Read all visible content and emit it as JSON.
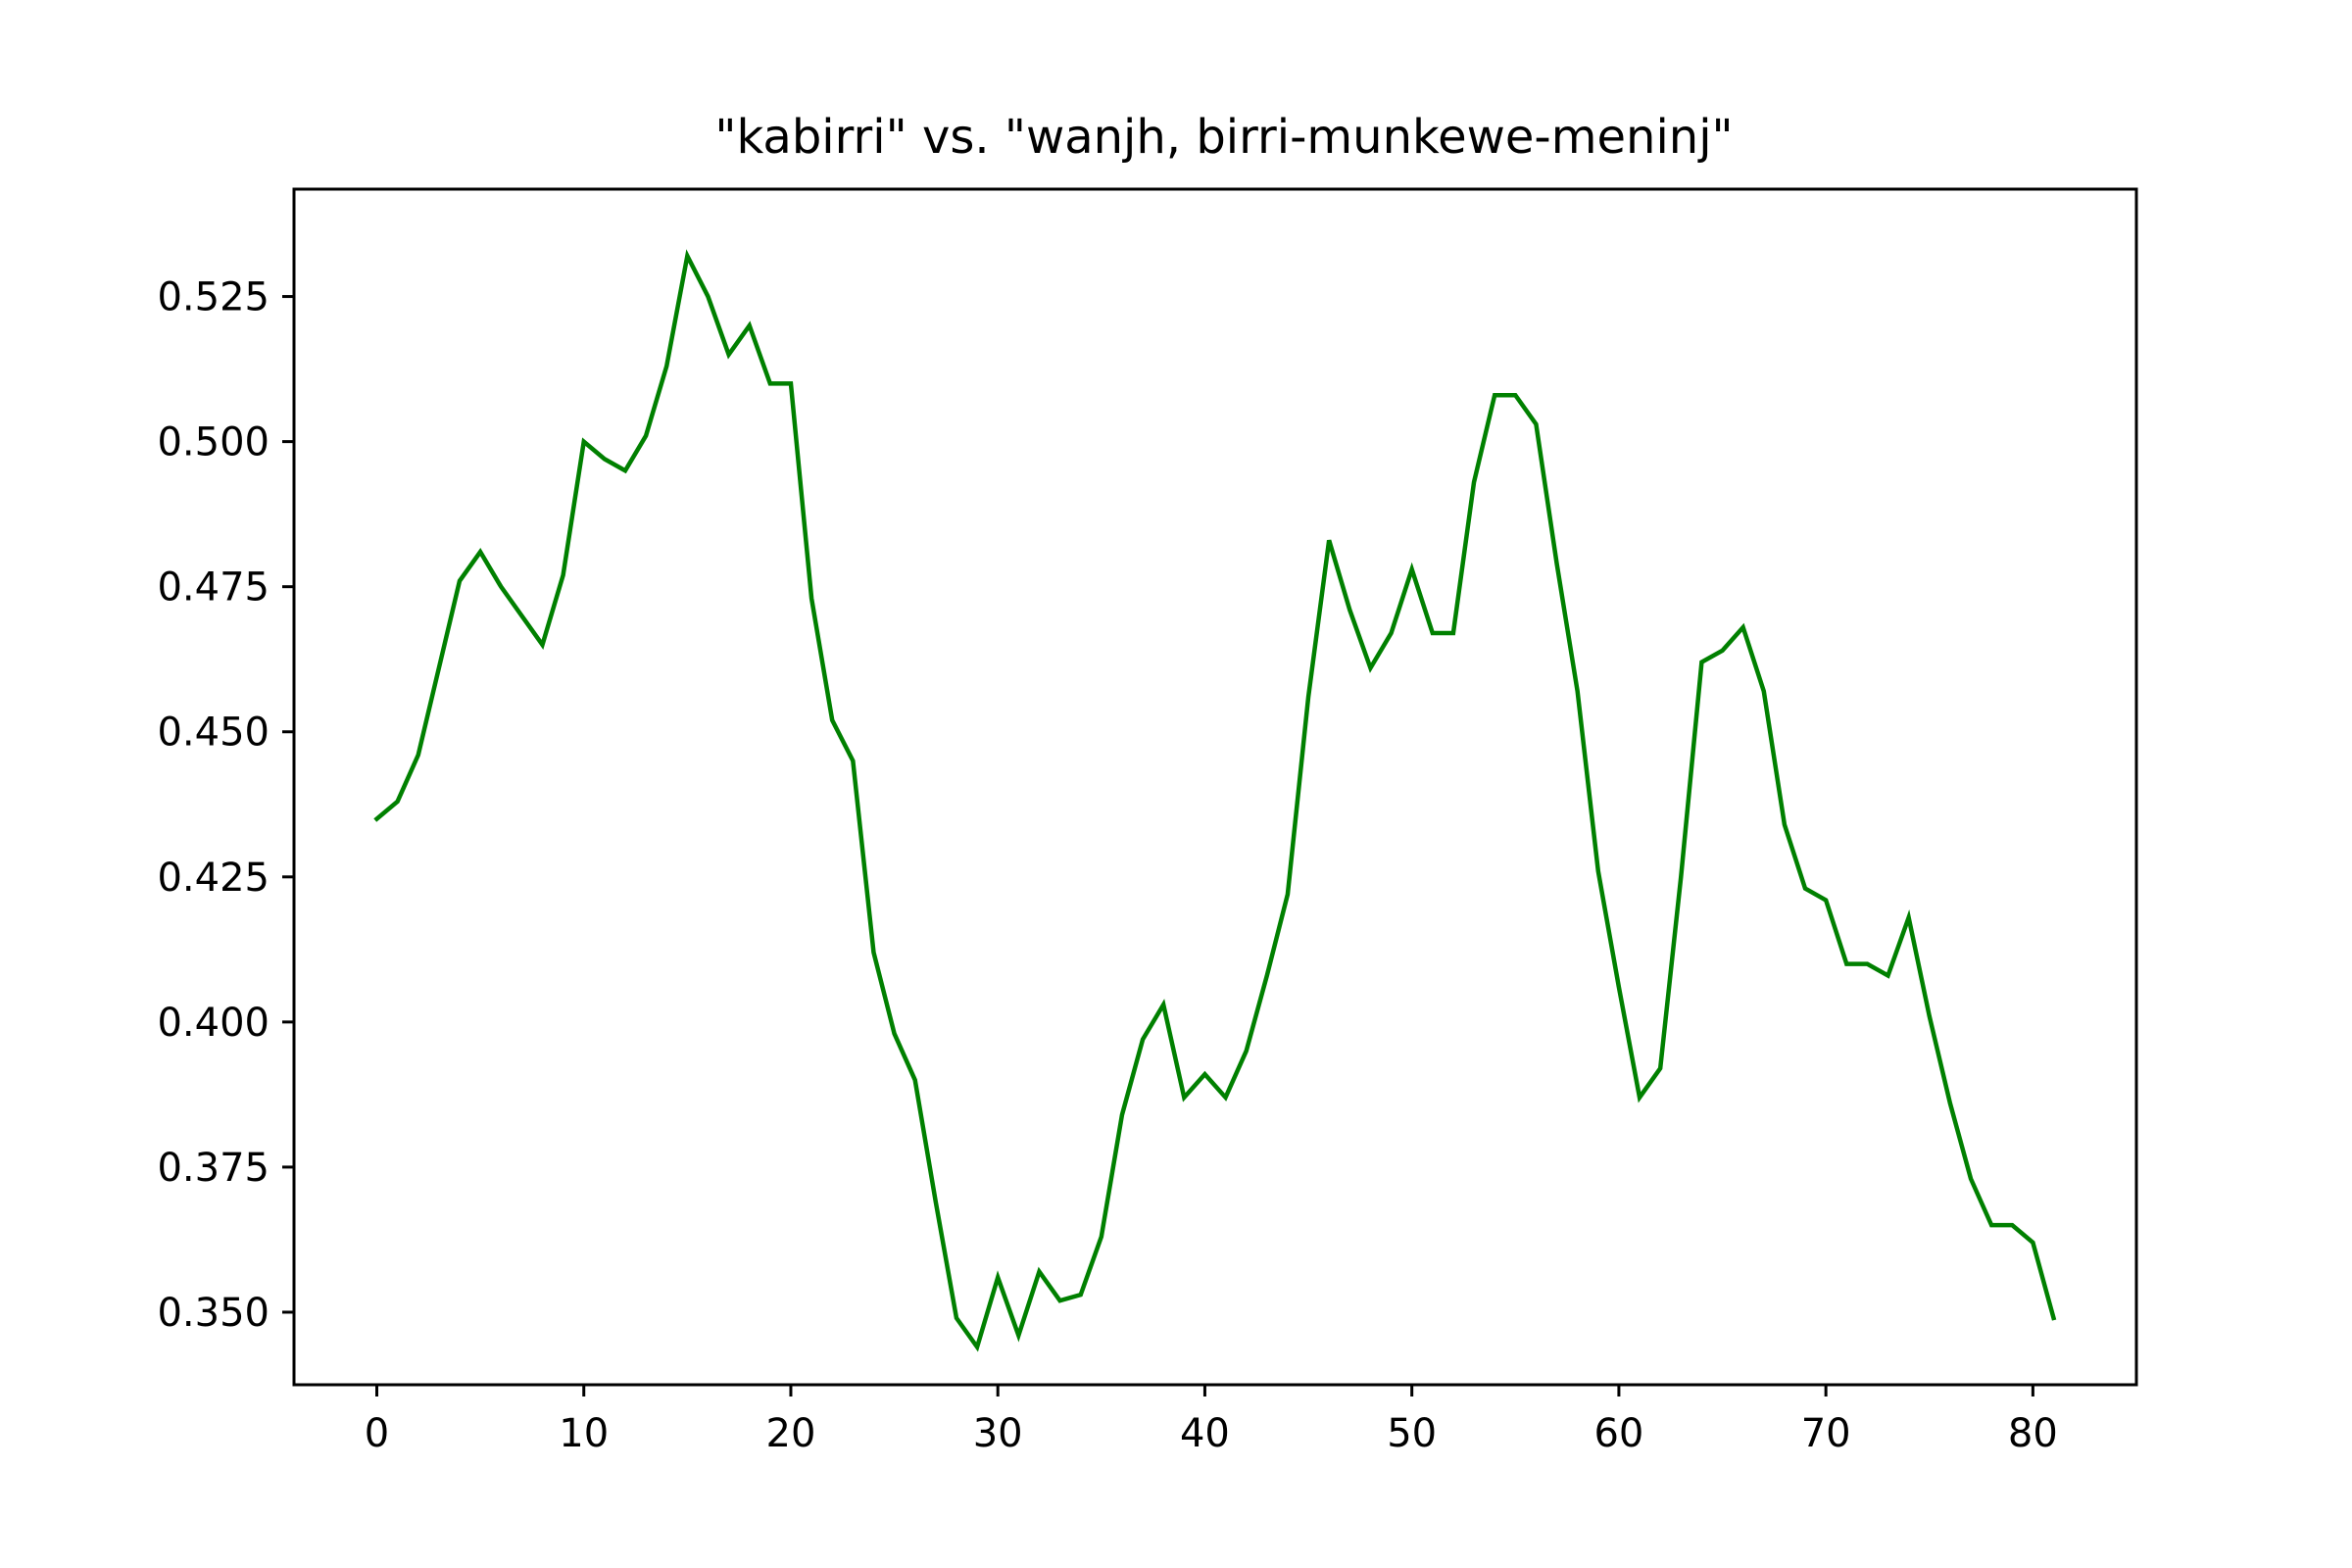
{
  "chart_data": {
    "type": "line",
    "title": "\"kabirri\" vs. \"wanjh, birri-munkewe-meninj\"",
    "xlabel": "",
    "ylabel": "",
    "xlim": [
      -4,
      85
    ],
    "ylim": [
      0.3375,
      0.5435
    ],
    "xticks": [
      0,
      10,
      20,
      30,
      40,
      50,
      60,
      70,
      80
    ],
    "xtick_labels": [
      "0",
      "10",
      "20",
      "30",
      "40",
      "50",
      "60",
      "70",
      "80"
    ],
    "yticks": [
      0.35,
      0.375,
      0.4,
      0.425,
      0.45,
      0.475,
      0.5,
      0.525
    ],
    "ytick_labels": [
      "0.350",
      "0.375",
      "0.400",
      "0.425",
      "0.450",
      "0.475",
      "0.500",
      "0.525"
    ],
    "grid": false,
    "legend": "none",
    "series": [
      {
        "color": "#008000",
        "x": [
          0,
          1,
          2,
          3,
          4,
          5,
          6,
          7,
          8,
          9,
          10,
          11,
          12,
          13,
          14,
          15,
          16,
          17,
          18,
          19,
          20,
          21,
          22,
          23,
          24,
          25,
          26,
          27,
          28,
          29,
          30,
          31,
          32,
          33,
          34,
          35,
          36,
          37,
          38,
          39,
          40,
          41,
          42,
          43,
          44,
          45,
          46,
          47,
          48,
          49,
          50,
          51,
          52,
          53,
          54,
          55,
          56,
          57,
          58,
          59,
          60,
          61,
          62,
          63,
          64,
          65,
          66,
          67,
          68,
          69,
          70,
          71,
          72,
          73,
          74,
          75,
          76,
          77,
          78,
          79,
          80,
          81
        ],
        "values": [
          0.435,
          0.438,
          0.446,
          0.461,
          0.476,
          0.481,
          0.475,
          0.47,
          0.465,
          0.477,
          0.5,
          0.497,
          0.495,
          0.501,
          0.513,
          0.532,
          0.525,
          0.515,
          0.52,
          0.51,
          0.51,
          0.473,
          0.452,
          0.445,
          0.412,
          0.398,
          0.39,
          0.369,
          0.349,
          0.344,
          0.356,
          0.346,
          0.357,
          0.352,
          0.353,
          0.363,
          0.384,
          0.397,
          0.403,
          0.387,
          0.391,
          0.387,
          0.395,
          0.408,
          0.422,
          0.456,
          0.483,
          0.471,
          0.461,
          0.467,
          0.478,
          0.467,
          0.467,
          0.493,
          0.508,
          0.508,
          0.503,
          0.479,
          0.457,
          0.426,
          0.406,
          0.387,
          0.392,
          0.425,
          0.462,
          0.464,
          0.468,
          0.457,
          0.434,
          0.423,
          0.421,
          0.41,
          0.41,
          0.408,
          0.418,
          0.401,
          0.386,
          0.373,
          0.365,
          0.365,
          0.362,
          0.349
        ]
      }
    ]
  }
}
